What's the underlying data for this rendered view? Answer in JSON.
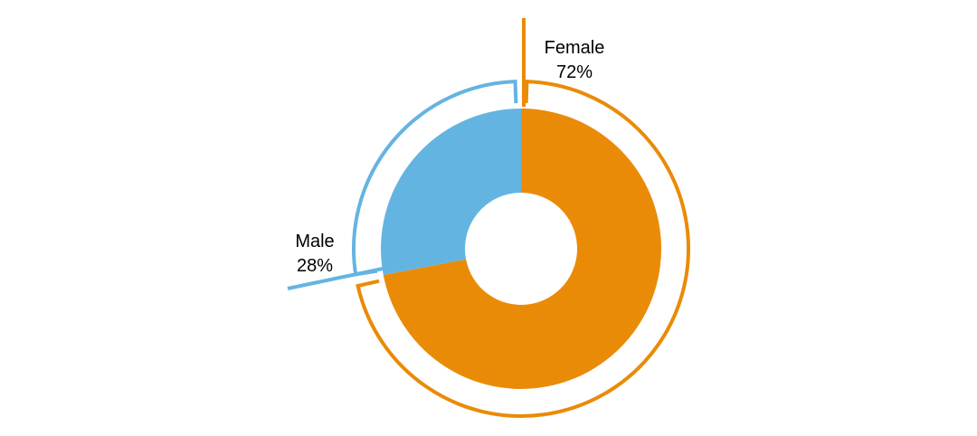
{
  "chart_data": {
    "type": "pie",
    "variant": "donut",
    "title": "",
    "slices": [
      {
        "name": "Female",
        "value": 72,
        "value_label": "72%",
        "color": "#EA8B07"
      },
      {
        "name": "Male",
        "value": 28,
        "value_label": "28%",
        "color": "#64B4E2"
      }
    ],
    "legend": "none",
    "labels_outside": true
  }
}
